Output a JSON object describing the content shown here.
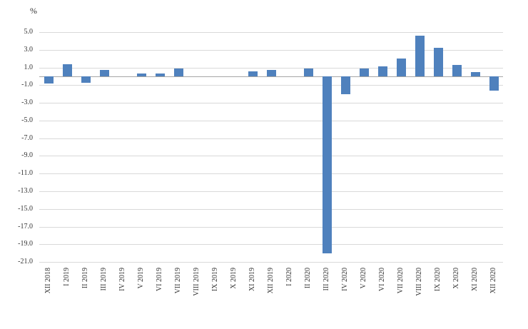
{
  "chart_data": {
    "type": "bar",
    "title": "",
    "xlabel": "",
    "ylabel": "%",
    "ylim": [
      -21.0,
      5.0
    ],
    "ytick_step": 2.0,
    "yticks": [
      "5.0",
      "3.0",
      "1.0",
      "-1.0",
      "-3.0",
      "-5.0",
      "-7.0",
      "-9.0",
      "-11.0",
      "-13.0",
      "-15.0",
      "-17.0",
      "-19.0",
      "-21.0"
    ],
    "categories": [
      "XII 2018",
      "I 2019",
      "II 2019",
      "III 2019",
      "IV 2019",
      "V 2019",
      "VI 2019",
      "VII 2019",
      "VIII 2019",
      "IX 2019",
      "X 2019",
      "XI 2019",
      "XII 2019",
      "I 2020",
      "II 2020",
      "III 2020",
      "IV 2020",
      "V 2020",
      "VI 2020",
      "VII 2020",
      "VIII 2020",
      "IX 2020",
      "X 2020",
      "XI 2020",
      "XII 2020"
    ],
    "values": [
      -0.8,
      1.4,
      -0.7,
      0.7,
      0.0,
      0.3,
      0.3,
      0.9,
      0.0,
      0.0,
      0.0,
      0.6,
      0.7,
      0.0,
      0.9,
      -20.0,
      -2.0,
      0.9,
      1.1,
      2.0,
      4.6,
      3.2,
      1.3,
      0.5,
      -1.6
    ],
    "grid": true,
    "legend": false,
    "bar_color": "#4f81bd",
    "gridline_color": "#d9d9d9",
    "axis_line_color": "#a6a6a6",
    "text_color": "#333333"
  }
}
